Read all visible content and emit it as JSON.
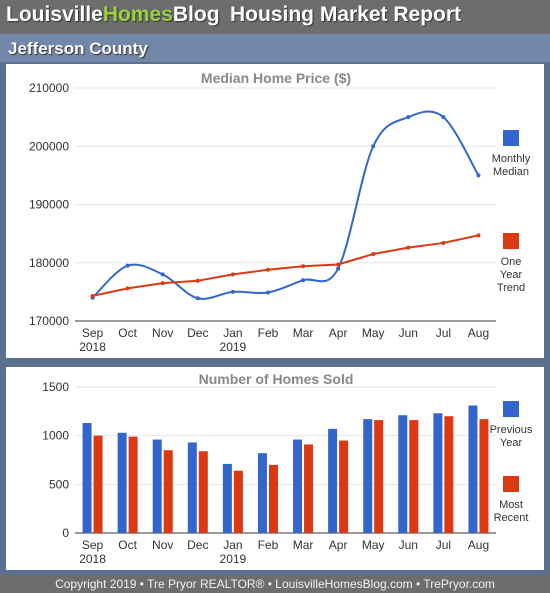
{
  "header": {
    "brand_part1": "Louisville",
    "brand_part2": "Homes",
    "brand_part3": "Blog",
    "title": "Housing Market Report"
  },
  "county": "Jefferson County",
  "footer": "Copyright 2019 • Tre Pryor REALTOR® • LouisvilleHomesBlog.com • TrePryor.com",
  "colors": {
    "blue": "#3366cc",
    "red": "#dc3912",
    "brand_green": "#9bd13c"
  },
  "chart_data": [
    {
      "type": "line",
      "title": "Median Home Price ($)",
      "categories": [
        "Sep",
        "Oct",
        "Nov",
        "Dec",
        "Jan",
        "Feb",
        "Mar",
        "Apr",
        "May",
        "Jun",
        "Jul",
        "Aug"
      ],
      "category_years": [
        "2018",
        "",
        "",
        "",
        "2019",
        "",
        "",
        "",
        "",
        "",
        "",
        ""
      ],
      "ylim": [
        170000,
        210000
      ],
      "yticks": [
        "170000",
        "180000",
        "190000",
        "200000",
        "210000"
      ],
      "grid": true,
      "legend_position": "right",
      "series": [
        {
          "name": "Monthly Median",
          "color": "#3366cc",
          "smooth": true,
          "values": [
            174000,
            179500,
            178000,
            173900,
            175000,
            174900,
            177000,
            179000,
            200000,
            205000,
            205000,
            195000
          ]
        },
        {
          "name": "One Year Trend",
          "color": "#dc3912",
          "smooth": false,
          "values": [
            174300,
            175600,
            176500,
            176900,
            178000,
            178800,
            179400,
            179700,
            181500,
            182600,
            183400,
            184700
          ]
        }
      ]
    },
    {
      "type": "bar",
      "title": "Number of Homes Sold",
      "categories": [
        "Sep",
        "Oct",
        "Nov",
        "Dec",
        "Jan",
        "Feb",
        "Mar",
        "Apr",
        "May",
        "Jun",
        "Jul",
        "Aug"
      ],
      "category_years": [
        "2018",
        "",
        "",
        "",
        "2019",
        "",
        "",
        "",
        "",
        "",
        "",
        ""
      ],
      "ylim": [
        0,
        1500
      ],
      "yticks": [
        "0",
        "500",
        "1000",
        "1500"
      ],
      "grid": true,
      "legend_position": "right",
      "series": [
        {
          "name": "Previous Year",
          "color": "#3366cc",
          "values": [
            1130,
            1030,
            960,
            930,
            710,
            820,
            960,
            1070,
            1170,
            1210,
            1230,
            1310
          ]
        },
        {
          "name": "Most Recent",
          "color": "#dc3912",
          "values": [
            1000,
            990,
            850,
            840,
            640,
            700,
            910,
            950,
            1160,
            1160,
            1200,
            1170
          ]
        }
      ]
    }
  ]
}
